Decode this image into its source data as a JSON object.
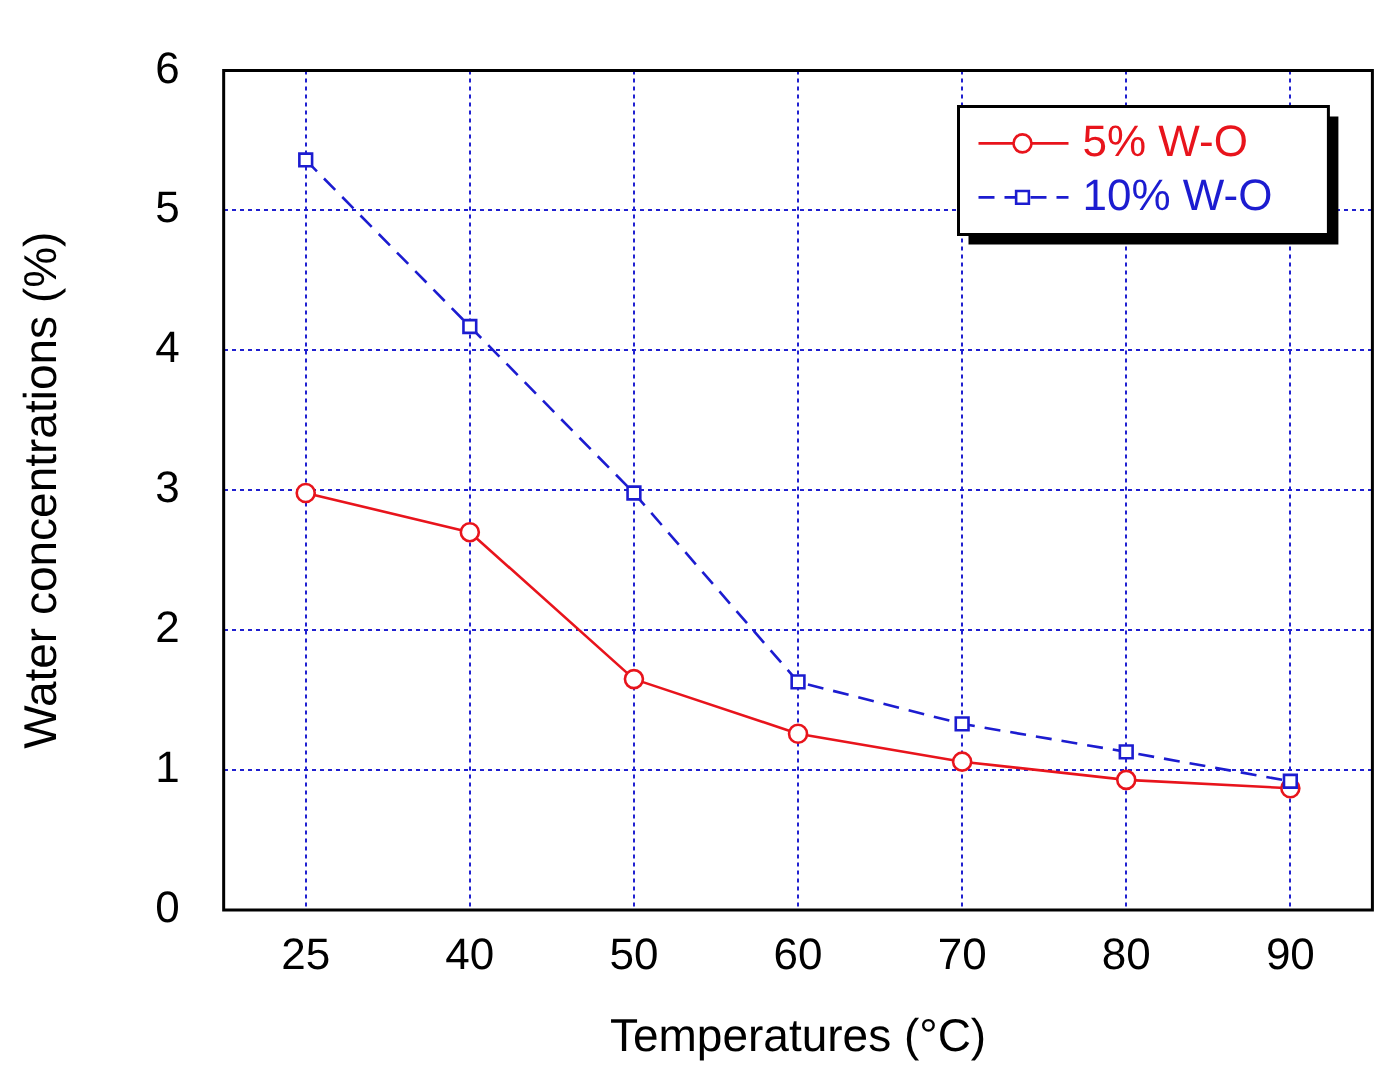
{
  "chart_data": {
    "type": "line",
    "xlabel": "Temperatures (°C)",
    "ylabel": "Water concentrations (%)",
    "categories": [
      "25",
      "40",
      "50",
      "60",
      "70",
      "80",
      "90"
    ],
    "series": [
      {
        "name": "5% W-O",
        "color": "#e8141c",
        "marker": "circle",
        "line_style": "solid",
        "values": [
          2.98,
          2.7,
          1.65,
          1.26,
          1.06,
          0.93,
          0.87
        ]
      },
      {
        "name": "10% W-O",
        "color": "#1c1cd0",
        "marker": "square",
        "line_style": "dashed",
        "values": [
          5.36,
          4.17,
          2.98,
          1.63,
          1.33,
          1.13,
          0.92
        ]
      }
    ],
    "ylim": [
      0,
      6
    ],
    "yticks": [
      0,
      1,
      2,
      3,
      4,
      5,
      6
    ],
    "grid": true,
    "legend": "top right"
  }
}
